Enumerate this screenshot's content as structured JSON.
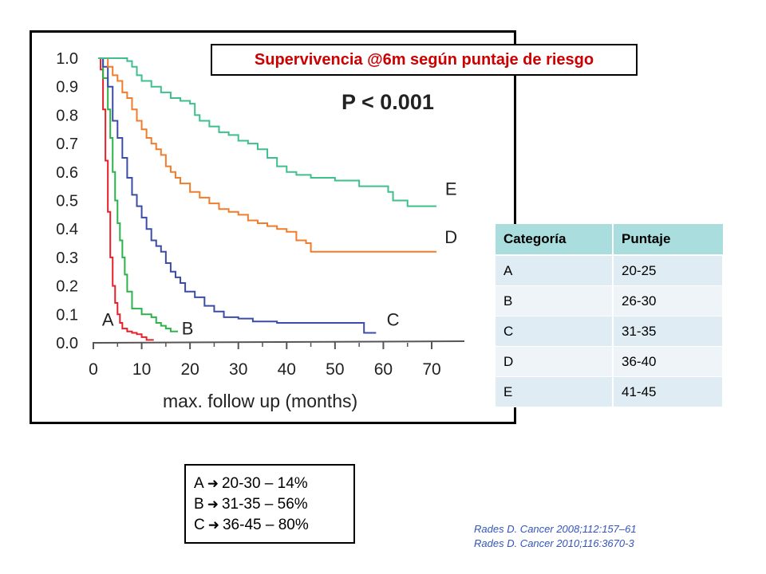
{
  "title": "Supervivencia @6m según puntaje de riesgo",
  "p_value": "P < 0.001",
  "table": {
    "headers": [
      "Categoría",
      "Puntaje"
    ],
    "rows": [
      [
        "A",
        "20-25"
      ],
      [
        "B",
        "26-30"
      ],
      [
        "C",
        "31-35"
      ],
      [
        "D",
        "36-40"
      ],
      [
        "E",
        "41-45"
      ]
    ]
  },
  "summary": [
    {
      "group": "A",
      "text": "20-30 – 14%"
    },
    {
      "group": "B",
      "text": "31-35 – 56%"
    },
    {
      "group": "C",
      "text": "36-45 – 80%"
    }
  ],
  "references": [
    "Rades D. Cancer 2008;112:157–61",
    "Rades D. Cancer 2010;116:3670-3"
  ],
  "chart_data": {
    "type": "line",
    "title": "",
    "xlabel": "max. follow up (months)",
    "ylabel": "",
    "xlim": [
      0,
      75
    ],
    "ylim": [
      0,
      1.0
    ],
    "xticks": [
      "0",
      "10",
      "20",
      "30",
      "40",
      "50",
      "60",
      "70"
    ],
    "yticks": [
      "0.0",
      "0.1",
      "0.2",
      "0.3",
      "0.4",
      "0.5",
      "0.6",
      "0.7",
      "0.8",
      "0.9",
      "1.0"
    ],
    "grid": false,
    "step": true,
    "series": [
      {
        "name": "A",
        "color": "#e8202a",
        "x": [
          1,
          1.5,
          2,
          2.5,
          3,
          3.5,
          4,
          4.5,
          5,
          5.5,
          6,
          7,
          8,
          9,
          10,
          11,
          12.5
        ],
        "y": [
          1.0,
          0.96,
          0.82,
          0.64,
          0.46,
          0.3,
          0.2,
          0.14,
          0.1,
          0.07,
          0.05,
          0.04,
          0.035,
          0.03,
          0.02,
          0.01,
          0.01
        ]
      },
      {
        "name": "B",
        "color": "#2db34a",
        "x": [
          1,
          2,
          3,
          3.5,
          4,
          4.5,
          5,
          5.5,
          6,
          6.5,
          7,
          8,
          10,
          12,
          13,
          14,
          15,
          16,
          17.5
        ],
        "y": [
          1.0,
          0.93,
          0.82,
          0.72,
          0.6,
          0.5,
          0.42,
          0.36,
          0.3,
          0.24,
          0.18,
          0.12,
          0.1,
          0.09,
          0.07,
          0.06,
          0.05,
          0.04,
          0.04
        ]
      },
      {
        "name": "C",
        "color": "#3b4ca8",
        "x": [
          1,
          2,
          3,
          4,
          5,
          6,
          7,
          8,
          9,
          10,
          11,
          12,
          13,
          14,
          15,
          16,
          17,
          18,
          19,
          21,
          23,
          25,
          27,
          30,
          33,
          38,
          45,
          50,
          55,
          56,
          58.5
        ],
        "y": [
          1.0,
          0.97,
          0.9,
          0.78,
          0.72,
          0.65,
          0.58,
          0.52,
          0.48,
          0.44,
          0.4,
          0.36,
          0.34,
          0.32,
          0.28,
          0.25,
          0.23,
          0.21,
          0.18,
          0.16,
          0.13,
          0.11,
          0.09,
          0.085,
          0.075,
          0.07,
          0.07,
          0.07,
          0.07,
          0.035,
          0.035
        ]
      },
      {
        "name": "D",
        "color": "#f07c2c",
        "x": [
          1,
          3,
          4,
          5,
          6,
          7,
          8,
          9,
          10,
          11,
          12,
          13,
          14,
          15,
          16,
          17,
          18,
          20,
          22,
          24,
          26,
          28,
          30,
          32,
          34,
          36,
          38,
          40,
          42,
          44,
          45,
          50,
          55,
          60,
          65,
          71
        ],
        "y": [
          1.0,
          0.97,
          0.94,
          0.92,
          0.88,
          0.86,
          0.82,
          0.78,
          0.75,
          0.72,
          0.7,
          0.68,
          0.66,
          0.62,
          0.6,
          0.58,
          0.56,
          0.53,
          0.51,
          0.49,
          0.47,
          0.46,
          0.45,
          0.43,
          0.42,
          0.41,
          0.4,
          0.39,
          0.36,
          0.35,
          0.32,
          0.32,
          0.32,
          0.32,
          0.32,
          0.32
        ]
      },
      {
        "name": "E",
        "color": "#3fbf8c",
        "x": [
          1,
          3,
          5,
          7,
          8,
          9,
          10,
          12,
          14,
          16,
          18,
          20,
          21,
          22,
          24,
          26,
          28,
          30,
          32,
          34,
          36,
          38,
          40,
          42,
          45,
          50,
          55,
          58,
          61,
          62,
          65,
          68,
          71
        ],
        "y": [
          1.0,
          1.0,
          1.0,
          0.99,
          0.97,
          0.94,
          0.92,
          0.9,
          0.88,
          0.86,
          0.85,
          0.84,
          0.8,
          0.78,
          0.76,
          0.74,
          0.73,
          0.71,
          0.7,
          0.68,
          0.65,
          0.62,
          0.6,
          0.59,
          0.58,
          0.57,
          0.55,
          0.55,
          0.53,
          0.5,
          0.48,
          0.48,
          0.48
        ]
      }
    ],
    "curve_labels": [
      {
        "name": "A",
        "x": 3,
        "y": 0.06
      },
      {
        "name": "B",
        "x": 19.5,
        "y": 0.03
      },
      {
        "name": "C",
        "x": 62,
        "y": 0.06
      },
      {
        "name": "D",
        "x": 74,
        "y": 0.35
      },
      {
        "name": "E",
        "x": 74,
        "y": 0.52
      }
    ]
  }
}
